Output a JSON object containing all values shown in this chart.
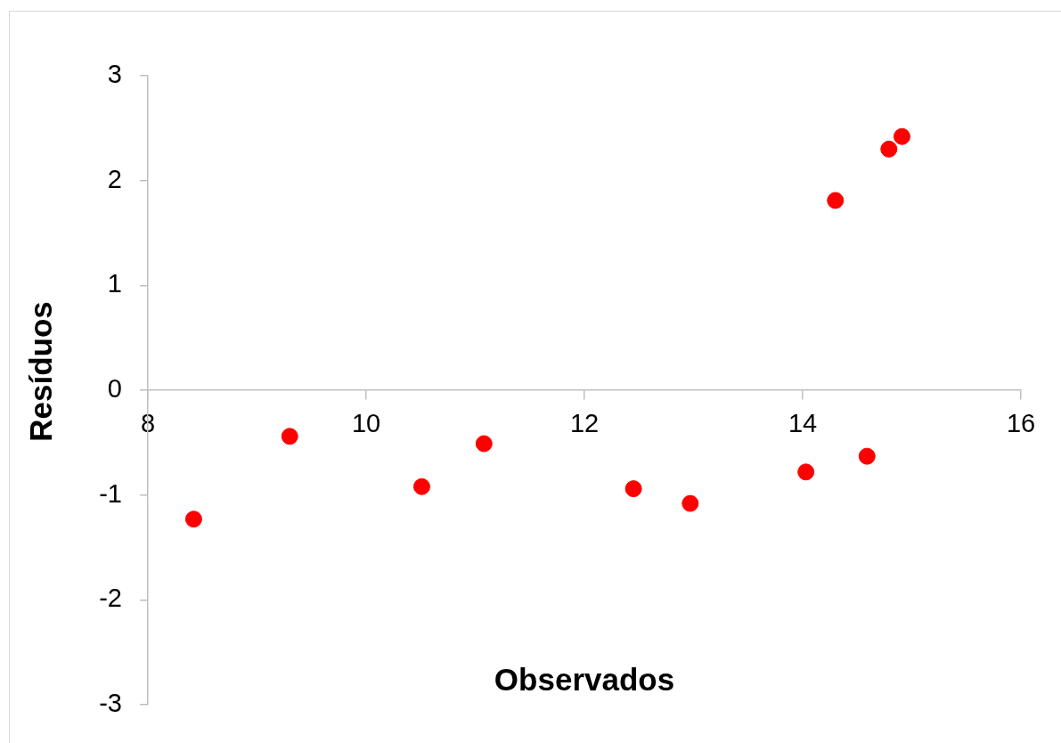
{
  "chart_data": {
    "type": "scatter",
    "xlabel": "Observados",
    "ylabel": "Resíduos",
    "x": [
      8.42,
      9.3,
      10.51,
      11.08,
      12.45,
      12.97,
      14.03,
      14.3,
      14.59,
      14.79,
      14.91
    ],
    "values": [
      -1.23,
      -0.44,
      -0.92,
      -0.51,
      -0.94,
      -1.08,
      -0.78,
      1.81,
      -0.63,
      2.3,
      2.42
    ],
    "color": "#ff0000",
    "marker": "circle",
    "xlim": [
      8,
      16
    ],
    "ylim": [
      -3,
      3
    ],
    "xticks": [
      8,
      10,
      12,
      14,
      16
    ],
    "yticks": [
      -3,
      -2,
      -1,
      0,
      1,
      2,
      3
    ]
  }
}
